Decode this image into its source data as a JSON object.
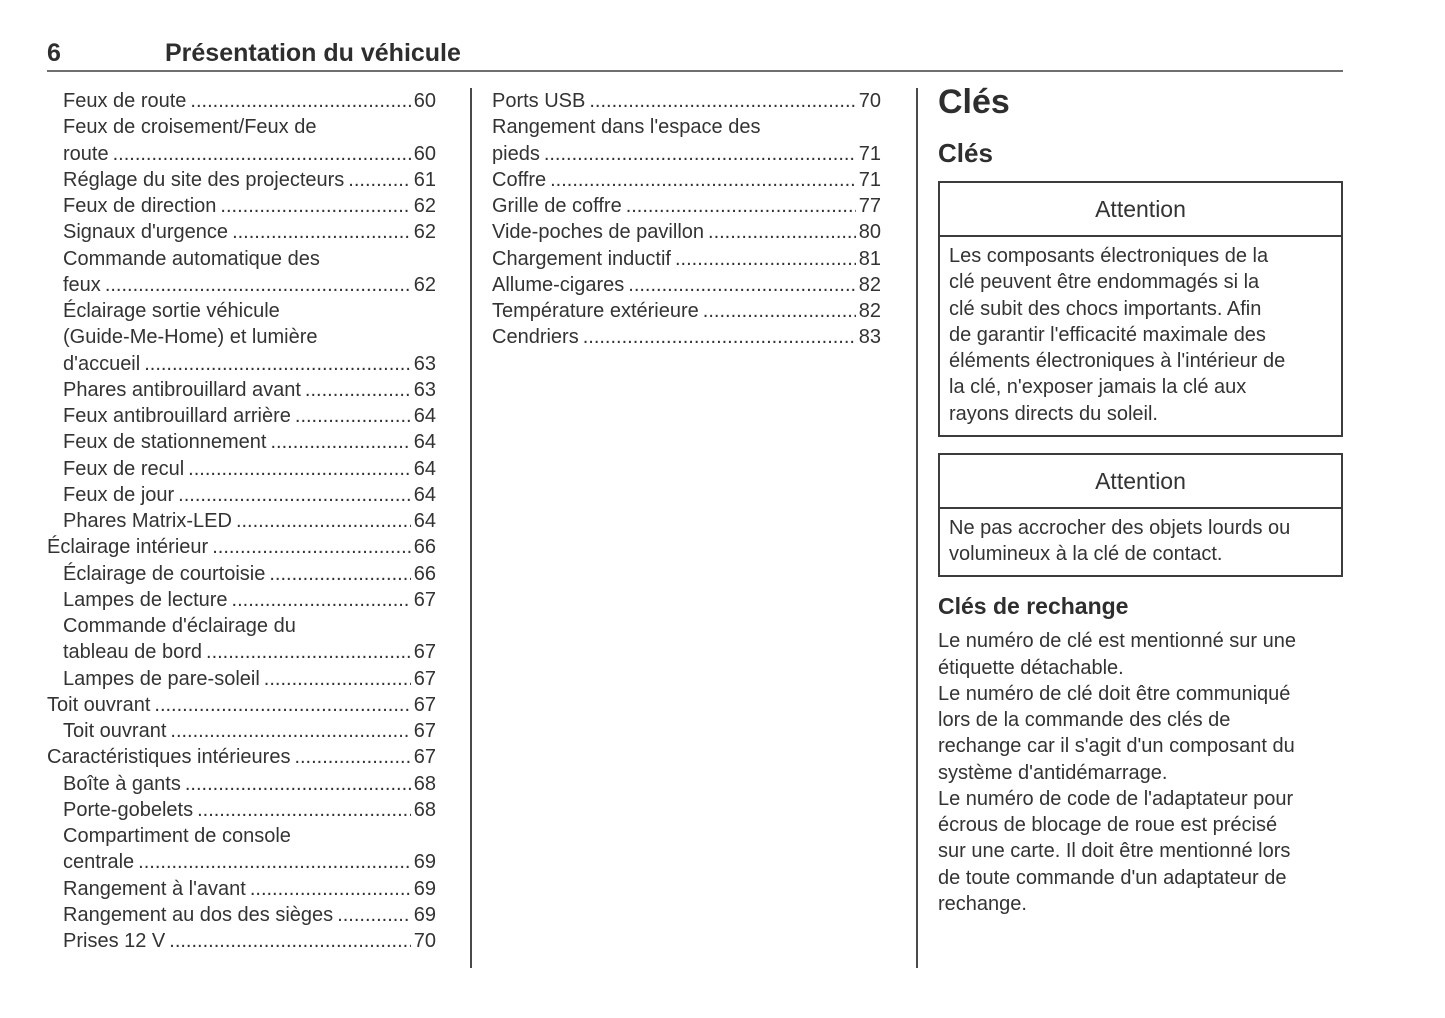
{
  "header": {
    "page_number": "6",
    "title": "Présentation du véhicule"
  },
  "toc_columns": [
    {
      "name": "left",
      "entries": [
        {
          "indent": 1,
          "lines": [
            "Feux de route"
          ],
          "page": "60"
        },
        {
          "indent": 1,
          "lines": [
            "Feux de croisement/Feux de",
            "route"
          ],
          "page": "60"
        },
        {
          "indent": 1,
          "lines": [
            "Réglage du site des projecteurs"
          ],
          "page": "61"
        },
        {
          "indent": 1,
          "lines": [
            "Feux de direction"
          ],
          "page": "62"
        },
        {
          "indent": 1,
          "lines": [
            "Signaux d'urgence"
          ],
          "page": "62"
        },
        {
          "indent": 1,
          "lines": [
            "Commande automatique des",
            "feux"
          ],
          "page": "62"
        },
        {
          "indent": 1,
          "lines": [
            "Éclairage sortie véhicule",
            "(Guide-Me-Home) et lumière",
            "d'accueil"
          ],
          "page": "63"
        },
        {
          "indent": 1,
          "lines": [
            "Phares antibrouillard avant"
          ],
          "page": "63"
        },
        {
          "indent": 1,
          "lines": [
            "Feux antibrouillard arrière"
          ],
          "page": "64"
        },
        {
          "indent": 1,
          "lines": [
            "Feux de stationnement"
          ],
          "page": "64"
        },
        {
          "indent": 1,
          "lines": [
            "Feux de recul"
          ],
          "page": "64"
        },
        {
          "indent": 1,
          "lines": [
            "Feux de jour"
          ],
          "page": "64"
        },
        {
          "indent": 1,
          "lines": [
            "Phares Matrix-LED"
          ],
          "page": "64"
        },
        {
          "indent": 0,
          "lines": [
            "Éclairage intérieur"
          ],
          "page": "66"
        },
        {
          "indent": 1,
          "lines": [
            "Éclairage de courtoisie"
          ],
          "page": "66"
        },
        {
          "indent": 1,
          "lines": [
            "Lampes de lecture"
          ],
          "page": "67"
        },
        {
          "indent": 1,
          "lines": [
            "Commande d'éclairage du",
            "tableau de bord"
          ],
          "page": "67"
        },
        {
          "indent": 1,
          "lines": [
            "Lampes de pare-soleil"
          ],
          "page": "67"
        },
        {
          "indent": 0,
          "lines": [
            "Toit ouvrant"
          ],
          "page": "67"
        },
        {
          "indent": 1,
          "lines": [
            "Toit ouvrant"
          ],
          "page": "67"
        },
        {
          "indent": 0,
          "lines": [
            "Caractéristiques intérieures"
          ],
          "page": "67"
        },
        {
          "indent": 1,
          "lines": [
            "Boîte à gants"
          ],
          "page": "68"
        },
        {
          "indent": 1,
          "lines": [
            "Porte-gobelets"
          ],
          "page": "68"
        },
        {
          "indent": 1,
          "lines": [
            "Compartiment de console",
            "centrale"
          ],
          "page": "69"
        },
        {
          "indent": 1,
          "lines": [
            "Rangement à l'avant"
          ],
          "page": "69"
        },
        {
          "indent": 1,
          "lines": [
            "Rangement au dos des sièges"
          ],
          "page": "69"
        },
        {
          "indent": 1,
          "lines": [
            "Prises 12 V"
          ],
          "page": "70"
        }
      ]
    },
    {
      "name": "middle",
      "entries": [
        {
          "indent": 0,
          "lines": [
            "Ports USB"
          ],
          "page": "70"
        },
        {
          "indent": 0,
          "lines": [
            "Rangement dans l'espace des",
            "pieds"
          ],
          "page": "71"
        },
        {
          "indent": 0,
          "lines": [
            "Coffre"
          ],
          "page": "71"
        },
        {
          "indent": 0,
          "lines": [
            "Grille de coffre"
          ],
          "page": "77"
        },
        {
          "indent": 0,
          "lines": [
            "Vide-poches de pavillon"
          ],
          "page": "80"
        },
        {
          "indent": 0,
          "lines": [
            "Chargement inductif"
          ],
          "page": "81"
        },
        {
          "indent": 0,
          "lines": [
            "Allume-cigares"
          ],
          "page": "82"
        },
        {
          "indent": 0,
          "lines": [
            "Température extérieure"
          ],
          "page": "82"
        },
        {
          "indent": 0,
          "lines": [
            "Cendriers"
          ],
          "page": "83"
        }
      ]
    }
  ],
  "content": {
    "chapter_title": "Clés",
    "section_title": "Clés",
    "attention_boxes": [
      {
        "title": "Attention",
        "lines": [
          "Les composants électroniques de la",
          "clé peuvent être endommagés si la",
          "clé subit des chocs importants. Afin",
          "de garantir l'efficacité maximale des",
          "éléments électroniques à l'intérieur de",
          "la clé, n'exposer jamais la clé aux",
          "rayons directs du soleil."
        ]
      },
      {
        "title": "Attention",
        "lines": [
          "Ne pas accrocher des objets lourds ou",
          "volumineux à la clé de contact."
        ]
      }
    ],
    "subsection_title": "Clés de rechange",
    "paragraphs": [
      {
        "lines": [
          "Le numéro de clé est mentionné sur une",
          "étiquette détachable."
        ]
      },
      {
        "lines": [
          "Le numéro de clé doit être communiqué",
          "lors de la commande des clés de",
          "rechange car il s'agit d'un composant du",
          "système d'antidémarrage."
        ]
      },
      {
        "lines": [
          "Le numéro de code de l'adaptateur pour",
          "écrous de blocage de roue est précisé",
          "sur une carte. Il doit être mentionné lors",
          "de toute commande d'un adaptateur de",
          "rechange."
        ]
      }
    ]
  },
  "colors": {
    "text": "#333333",
    "heading": "#2e2e2e",
    "header_rule": "#6f6f6f",
    "column_rule": "#4a4a4a",
    "box_border": "#3c3c3c",
    "background": "#ffffff"
  }
}
